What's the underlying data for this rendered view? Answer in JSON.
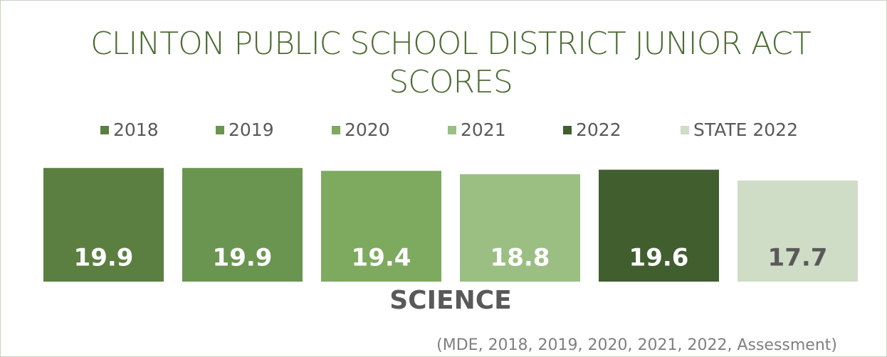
{
  "chart_data": {
    "type": "bar",
    "title": "CLINTON PUBLIC SCHOOL DISTRICT JUNIOR ACT SCORES",
    "categories": [
      "SCIENCE"
    ],
    "series": [
      {
        "name": "2018",
        "color": "#5b7f40",
        "values": [
          19.9
        ]
      },
      {
        "name": "2019",
        "color": "#6a9550",
        "values": [
          19.9
        ]
      },
      {
        "name": "2020",
        "color": "#7eaa5f",
        "values": [
          19.4
        ]
      },
      {
        "name": "2021",
        "color": "#9bbf83",
        "values": [
          18.8
        ]
      },
      {
        "name": "2022",
        "color": "#415e2f",
        "values": [
          19.6
        ]
      },
      {
        "name": "STATE 2022",
        "color": "#cfdcc6",
        "values": [
          17.7
        ]
      }
    ],
    "legend": "top",
    "source": "(MDE, 2018, 2019, 2020, 2021, 2022, Assessment)"
  }
}
